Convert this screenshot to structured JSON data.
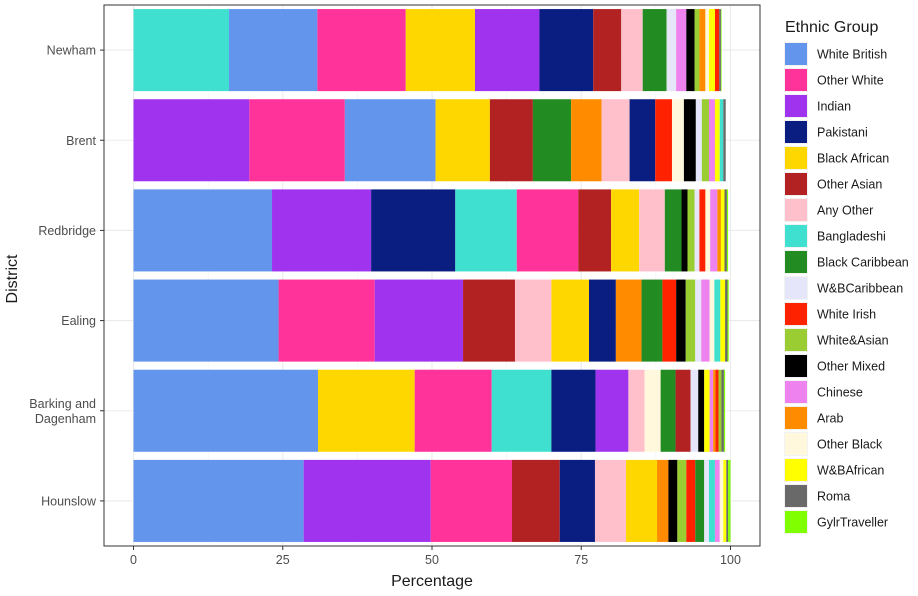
{
  "chart_data": {
    "type": "bar",
    "orientation": "horizontal",
    "stacked": true,
    "title": "",
    "xlabel": "Percentage",
    "ylabel": "District",
    "xlim": [
      0,
      100
    ],
    "x_ticks": [
      0,
      25,
      50,
      75,
      100
    ],
    "grid": true,
    "legend_position": "right",
    "legend_title": "Ethnic Group",
    "groups": [
      {
        "name": "White British",
        "color": "#6495ED"
      },
      {
        "name": "Other White",
        "color": "#FF3399"
      },
      {
        "name": "Indian",
        "color": "#A033EE"
      },
      {
        "name": "Pakistani",
        "color": "#0A1E82"
      },
      {
        "name": "Black African",
        "color": "#FFD700"
      },
      {
        "name": "Other Asian",
        "color": "#B22222"
      },
      {
        "name": "Any Other",
        "color": "#FFC0CB"
      },
      {
        "name": "Bangladeshi",
        "color": "#40E0D0"
      },
      {
        "name": "Black Caribbean",
        "color": "#228B22"
      },
      {
        "name": "W&BCaribbean",
        "color": "#E6E6FA"
      },
      {
        "name": "White Irish",
        "color": "#FF2200"
      },
      {
        "name": "White&Asian",
        "color": "#9ACD32"
      },
      {
        "name": "Other Mixed",
        "color": "#000000"
      },
      {
        "name": "Chinese",
        "color": "#EE82EE"
      },
      {
        "name": "Arab",
        "color": "#FF8C00"
      },
      {
        "name": "Other Black",
        "color": "#FFF8DC"
      },
      {
        "name": "W&BAfrican",
        "color": "#FFFF00"
      },
      {
        "name": "Roma",
        "color": "#696969"
      },
      {
        "name": "GylrTraveller",
        "color": "#7FFF00"
      }
    ],
    "categories": [
      "Newham",
      "Brent",
      "Redbridge",
      "Ealing",
      "Barking and Dagenham",
      "Hounslow"
    ],
    "category_display": [
      [
        "Newham"
      ],
      [
        "Brent"
      ],
      [
        "Redbridge"
      ],
      [
        "Ealing"
      ],
      [
        "Barking and",
        "Dagenham"
      ],
      [
        "Hounslow"
      ]
    ],
    "bars": [
      {
        "district": "Newham",
        "segments": [
          [
            "Bangladeshi",
            16.0
          ],
          [
            "White British",
            14.8
          ],
          [
            "Other White",
            14.8
          ],
          [
            "Black African",
            11.6
          ],
          [
            "Indian",
            10.8
          ],
          [
            "Pakistani",
            9.0
          ],
          [
            "Other Asian",
            4.7
          ],
          [
            "Any Other",
            3.6
          ],
          [
            "Black Caribbean",
            4.0
          ],
          [
            "W&BCaribbean",
            1.6
          ],
          [
            "Chinese",
            1.7
          ],
          [
            "Other Mixed",
            1.4
          ],
          [
            "White&Asian",
            0.8
          ],
          [
            "Arab",
            1.0
          ],
          [
            "Other Black",
            0.6
          ],
          [
            "W&BAfrican",
            1.0
          ],
          [
            "White Irish",
            0.7
          ],
          [
            "Roma",
            0.3
          ],
          [
            "GylrTraveller",
            0.1
          ]
        ]
      },
      {
        "district": "Brent",
        "segments": [
          [
            "Indian",
            19.4
          ],
          [
            "Other White",
            16.0
          ],
          [
            "White British",
            15.2
          ],
          [
            "Black African",
            9.1
          ],
          [
            "Other Asian",
            7.2
          ],
          [
            "Black Caribbean",
            6.4
          ],
          [
            "Arab",
            5.1
          ],
          [
            "Any Other",
            4.7
          ],
          [
            "Pakistani",
            4.3
          ],
          [
            "White Irish",
            2.8
          ],
          [
            "Other Black",
            2.0
          ],
          [
            "Other Mixed",
            2.0
          ],
          [
            "W&BCaribbean",
            1.0
          ],
          [
            "White&Asian",
            1.2
          ],
          [
            "Chinese",
            1.0
          ],
          [
            "W&BAfrican",
            0.8
          ],
          [
            "Bangladeshi",
            0.6
          ],
          [
            "Roma",
            0.4
          ]
        ]
      },
      {
        "district": "Redbridge",
        "segments": [
          [
            "White British",
            23.2
          ],
          [
            "Indian",
            16.6
          ],
          [
            "Pakistani",
            14.1
          ],
          [
            "Bangladeshi",
            10.3
          ],
          [
            "Other White",
            10.3
          ],
          [
            "Other Asian",
            5.5
          ],
          [
            "Black African",
            4.7
          ],
          [
            "Any Other",
            4.3
          ],
          [
            "Black Caribbean",
            2.8
          ],
          [
            "Other Mixed",
            1.0
          ],
          [
            "White&Asian",
            1.2
          ],
          [
            "W&BCaribbean",
            0.8
          ],
          [
            "White Irish",
            1.0
          ],
          [
            "Other Black",
            0.8
          ],
          [
            "Chinese",
            1.2
          ],
          [
            "Arab",
            0.6
          ],
          [
            "W&BAfrican",
            0.6
          ],
          [
            "Roma",
            0.4
          ],
          [
            "GylrTraveller",
            0.2
          ]
        ]
      },
      {
        "district": "Ealing",
        "segments": [
          [
            "White British",
            24.3
          ],
          [
            "Other White",
            16.1
          ],
          [
            "Indian",
            14.8
          ],
          [
            "Other Asian",
            8.7
          ],
          [
            "Any Other",
            6.1
          ],
          [
            "Black African",
            6.3
          ],
          [
            "Pakistani",
            4.5
          ],
          [
            "Arab",
            4.3
          ],
          [
            "Black Caribbean",
            3.5
          ],
          [
            "White Irish",
            2.3
          ],
          [
            "Other Mixed",
            1.6
          ],
          [
            "White&Asian",
            1.6
          ],
          [
            "W&BCaribbean",
            1.0
          ],
          [
            "Chinese",
            1.4
          ],
          [
            "Other Black",
            0.8
          ],
          [
            "Bangladeshi",
            1.0
          ],
          [
            "W&BAfrican",
            0.8
          ],
          [
            "Roma",
            0.4
          ],
          [
            "GylrTraveller",
            0.2
          ]
        ]
      },
      {
        "district": "Barking and Dagenham",
        "segments": [
          [
            "White British",
            30.9
          ],
          [
            "Black African",
            16.2
          ],
          [
            "Other White",
            12.9
          ],
          [
            "Bangladeshi",
            10.0
          ],
          [
            "Pakistani",
            7.4
          ],
          [
            "Indian",
            5.5
          ],
          [
            "Any Other",
            2.7
          ],
          [
            "Other Black",
            2.7
          ],
          [
            "Black Caribbean",
            2.5
          ],
          [
            "Other Asian",
            2.5
          ],
          [
            "W&BCaribbean",
            1.3
          ],
          [
            "Other Mixed",
            1.0
          ],
          [
            "W&BAfrican",
            0.9
          ],
          [
            "Chinese",
            0.6
          ],
          [
            "Arab",
            0.4
          ],
          [
            "White Irish",
            0.5
          ],
          [
            "White&Asian",
            0.5
          ],
          [
            "Roma",
            0.4
          ],
          [
            "GylrTraveller",
            0.2
          ]
        ]
      },
      {
        "district": "Hounslow",
        "segments": [
          [
            "White British",
            28.5
          ],
          [
            "Indian",
            21.3
          ],
          [
            "Other White",
            13.6
          ],
          [
            "Other Asian",
            8.0
          ],
          [
            "Pakistani",
            5.9
          ],
          [
            "Any Other",
            5.2
          ],
          [
            "Black African",
            5.2
          ],
          [
            "Arab",
            1.9
          ],
          [
            "Other Mixed",
            1.5
          ],
          [
            "White&Asian",
            1.5
          ],
          [
            "White Irish",
            1.5
          ],
          [
            "Black Caribbean",
            1.5
          ],
          [
            "W&BCaribbean",
            0.8
          ],
          [
            "Bangladeshi",
            1.0
          ],
          [
            "Chinese",
            0.8
          ],
          [
            "Other Black",
            0.6
          ],
          [
            "W&BAfrican",
            0.5
          ],
          [
            "Roma",
            0.3
          ],
          [
            "GylrTraveller",
            0.4
          ]
        ]
      }
    ]
  }
}
